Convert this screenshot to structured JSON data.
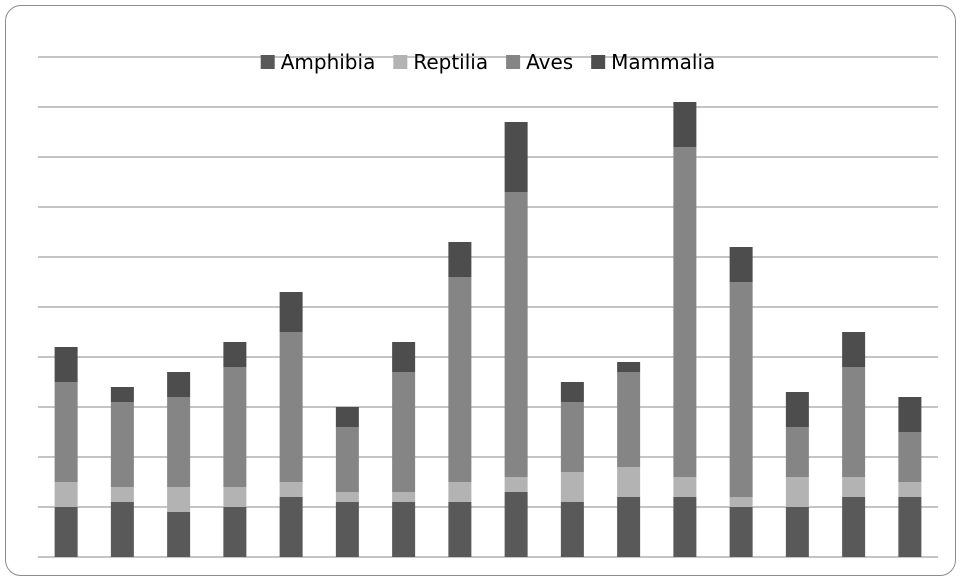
{
  "chart_data": {
    "type": "bar",
    "stacked": true,
    "categories": [
      "",
      "",
      "",
      "",
      "",
      "",
      "",
      "",
      "",
      "",
      "",
      "",
      "",
      "",
      "",
      ""
    ],
    "series": [
      {
        "name": "Amphibia",
        "color": "#595959",
        "values": [
          1.0,
          1.1,
          0.9,
          1.0,
          1.2,
          1.1,
          1.1,
          1.1,
          1.3,
          1.1,
          1.2,
          1.2,
          1.0,
          1.0,
          1.2,
          1.2
        ]
      },
      {
        "name": "Reptilia",
        "color": "#b3b3b3",
        "values": [
          0.5,
          0.3,
          0.5,
          0.4,
          0.3,
          0.2,
          0.2,
          0.4,
          0.3,
          0.6,
          0.6,
          0.4,
          0.2,
          0.6,
          0.4,
          0.3
        ]
      },
      {
        "name": "Aves",
        "color": "#858585",
        "values": [
          2.0,
          1.7,
          1.8,
          2.4,
          3.0,
          1.3,
          2.4,
          4.1,
          5.7,
          1.4,
          1.9,
          6.6,
          4.3,
          1.0,
          2.2,
          1.0
        ]
      },
      {
        "name": "Mammalia",
        "color": "#4d4d4d",
        "values": [
          0.7,
          0.3,
          0.5,
          0.5,
          0.8,
          0.4,
          0.6,
          0.7,
          1.4,
          0.4,
          0.2,
          0.9,
          0.7,
          0.7,
          0.7,
          0.7
        ]
      }
    ],
    "ylim": [
      0,
      10.4
    ],
    "grid": true,
    "legend_position": "top-center",
    "title": "",
    "xlabel": "",
    "ylabel": ""
  }
}
